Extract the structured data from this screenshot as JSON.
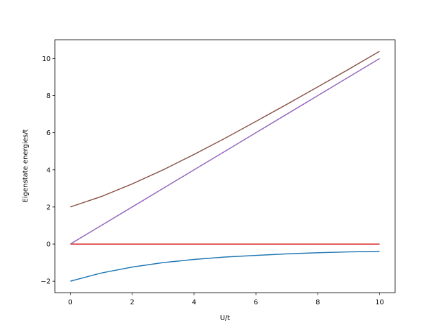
{
  "chart_data": {
    "type": "line",
    "x": [
      0,
      1,
      2,
      3,
      4,
      5,
      6,
      7,
      8,
      9,
      10
    ],
    "series": [
      {
        "color": "#1f77b4",
        "values": [
          -2,
          -1.56,
          -1.24,
          -1,
          -0.83,
          -0.7,
          -0.61,
          -0.53,
          -0.47,
          -0.42,
          -0.39
        ]
      },
      {
        "color": "#d62728",
        "values": [
          0,
          0,
          0,
          0,
          0,
          0,
          0,
          0,
          0,
          0,
          0
        ]
      },
      {
        "color": "#9467bd",
        "values": [
          0,
          1,
          2,
          3,
          4,
          5,
          6,
          7,
          8,
          9,
          10
        ]
      },
      {
        "color": "#8c564b",
        "values": [
          2,
          2.56,
          3.24,
          4,
          4.83,
          5.7,
          6.61,
          7.53,
          8.47,
          9.42,
          10.39
        ]
      }
    ],
    "xlabel": "U/t",
    "ylabel": "Eigenstate energies/t",
    "xlim": [
      -0.5,
      10.5
    ],
    "ylim": [
      -2.62,
      11.01
    ],
    "xticks": [
      0,
      2,
      4,
      6,
      8,
      10
    ],
    "yticks": [
      {
        "value": -2,
        "label": "−2"
      },
      0,
      2,
      4,
      6,
      8,
      10
    ]
  }
}
